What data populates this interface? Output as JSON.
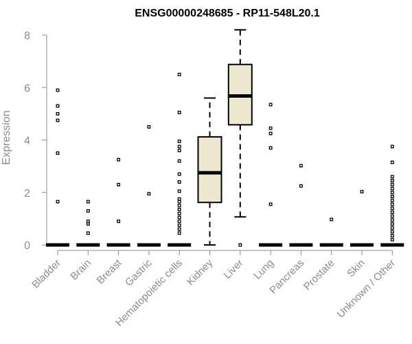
{
  "chart_data": {
    "type": "box",
    "title": "ENSG00000248685 - RP11-548L20.1",
    "xlabel": "",
    "ylabel": "Expression",
    "ylim": [
      0,
      8
    ],
    "yticks": [
      0,
      2,
      4,
      6,
      8
    ],
    "grid": false,
    "categories": [
      "Bladder",
      "Brain",
      "Breast",
      "Gastric",
      "Hematopoietic cells",
      "Kidney",
      "Liver",
      "Lung",
      "Pancreas",
      "Prostate",
      "Skin",
      "Unknown / Other"
    ],
    "boxes": [
      {
        "category": "Bladder",
        "min": 0,
        "q1": 0,
        "median": 0,
        "q3": 0,
        "max": 0,
        "outliers": [
          1.65,
          3.5,
          4.75,
          5.0,
          5.3,
          5.9
        ]
      },
      {
        "category": "Brain",
        "min": 0,
        "q1": 0,
        "median": 0,
        "q3": 0,
        "max": 0,
        "outliers": [
          0.45,
          0.8,
          0.9,
          1.3,
          1.65
        ]
      },
      {
        "category": "Breast",
        "min": 0,
        "q1": 0,
        "median": 0,
        "q3": 0,
        "max": 0,
        "outliers": [
          0.9,
          2.3,
          3.25
        ]
      },
      {
        "category": "Gastric",
        "min": 0,
        "q1": 0,
        "median": 0,
        "q3": 0,
        "max": 0,
        "outliers": [
          1.95,
          4.5
        ]
      },
      {
        "category": "Hematopoietic cells",
        "min": 0,
        "q1": 0,
        "median": 0,
        "q3": 0,
        "max": 0,
        "outliers": [
          0.45,
          0.6,
          0.75,
          0.9,
          1.05,
          1.2,
          1.35,
          1.5,
          1.65,
          1.75,
          2.05,
          2.4,
          2.7,
          3.2,
          3.6,
          3.75,
          3.95,
          5.05,
          6.5
        ]
      },
      {
        "category": "Kidney",
        "min": 0,
        "q1": 1.62,
        "median": 2.75,
        "q3": 4.12,
        "max": 5.6,
        "outliers": []
      },
      {
        "category": "Liver",
        "min": 1.07,
        "q1": 4.58,
        "median": 5.68,
        "q3": 6.88,
        "max": 8.2,
        "outliers": [
          0
        ]
      },
      {
        "category": "Lung",
        "min": 0,
        "q1": 0,
        "median": 0,
        "q3": 0,
        "max": 0,
        "outliers": [
          1.55,
          3.7,
          4.25,
          4.45,
          5.35
        ]
      },
      {
        "category": "Pancreas",
        "min": 0,
        "q1": 0,
        "median": 0,
        "q3": 0,
        "max": 0,
        "outliers": [
          2.25,
          3.02
        ]
      },
      {
        "category": "Prostate",
        "min": 0,
        "q1": 0,
        "median": 0,
        "q3": 0,
        "max": 0,
        "outliers": [
          0.97
        ]
      },
      {
        "category": "Skin",
        "min": 0,
        "q1": 0,
        "median": 0,
        "q3": 0,
        "max": 0,
        "outliers": [
          2.03
        ]
      },
      {
        "category": "Unknown / Other",
        "min": 0,
        "q1": 0,
        "median": 0,
        "q3": 0,
        "max": 0,
        "outliers": [
          0.2,
          0.35,
          0.5,
          0.65,
          0.8,
          0.95,
          1.1,
          1.25,
          1.4,
          1.55,
          1.7,
          1.85,
          2.0,
          2.15,
          2.3,
          2.45,
          2.6,
          3.15,
          3.75
        ]
      }
    ],
    "colors": {
      "box_fill": "#efe8d0",
      "stroke": "#000000",
      "axis": "#8c8c8c",
      "text": "#8c8c8c"
    }
  }
}
